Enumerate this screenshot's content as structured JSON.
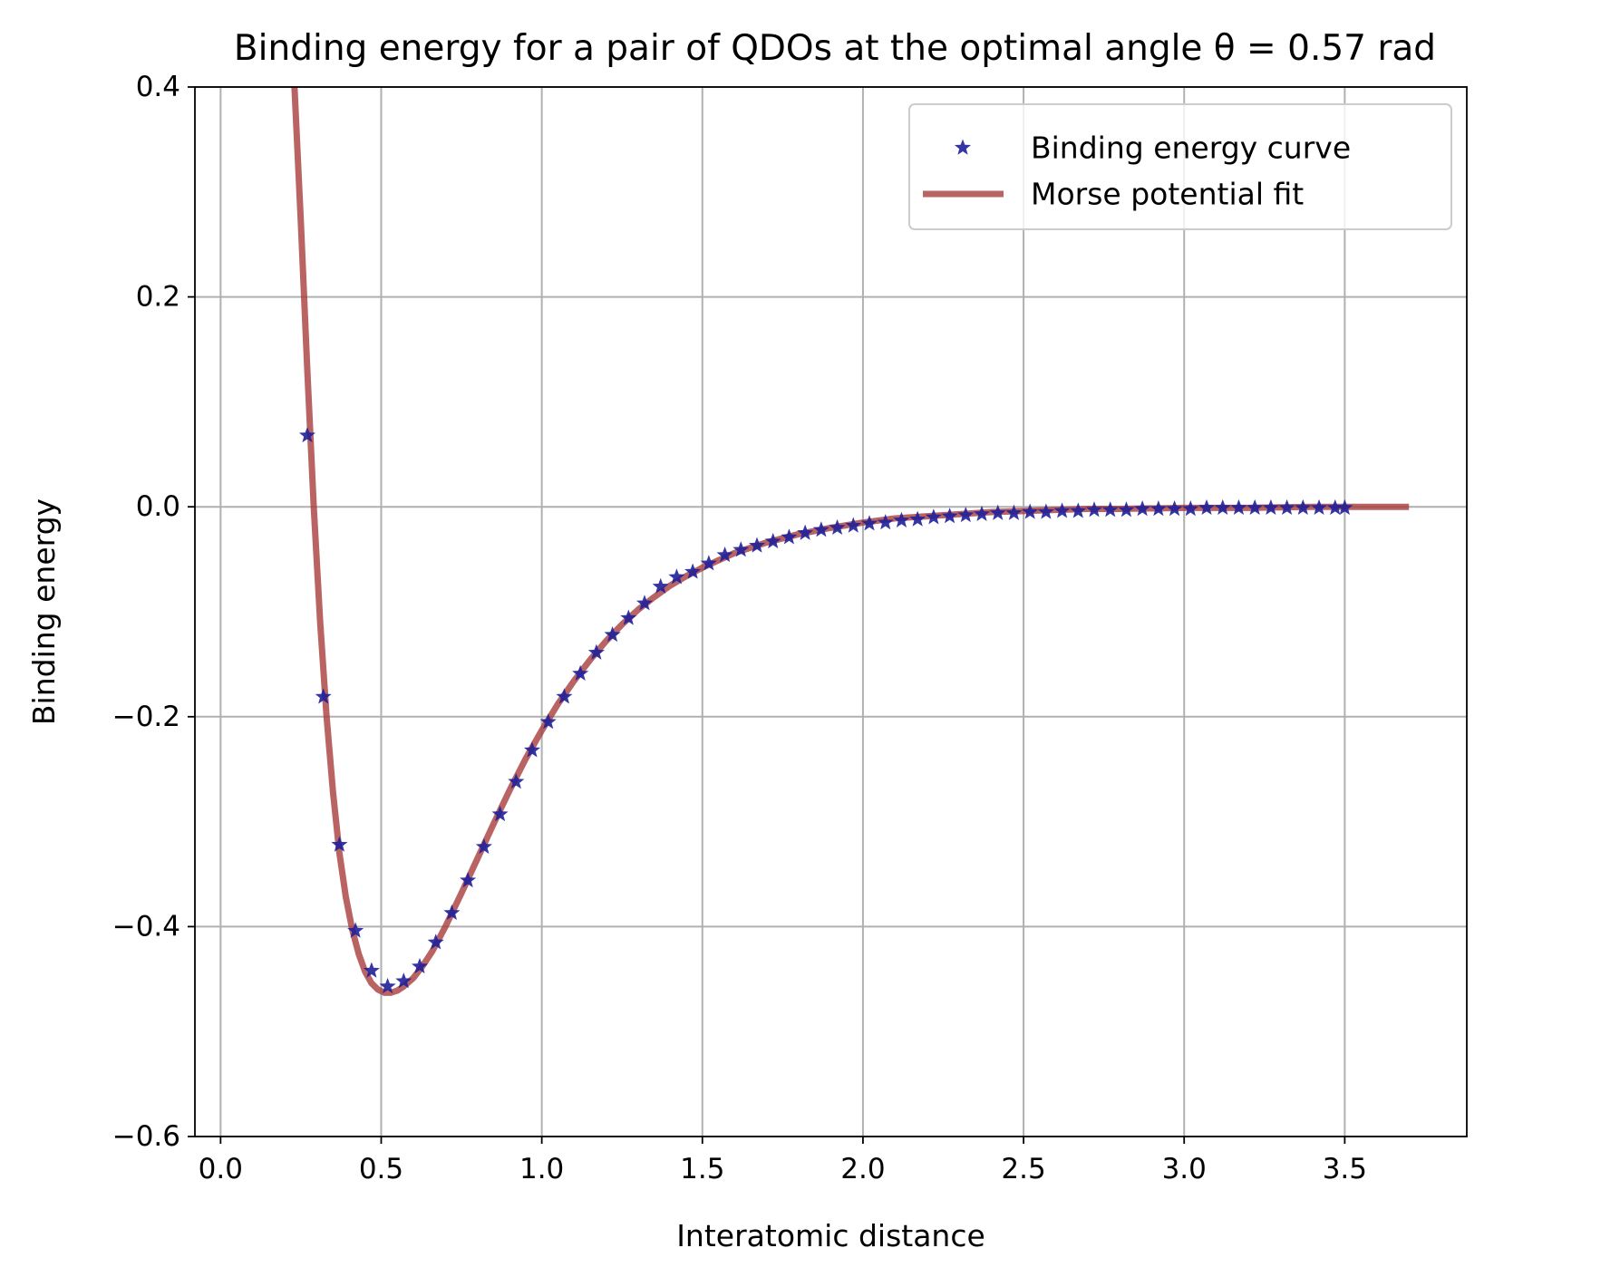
{
  "chart_data": {
    "type": "scatter",
    "title": "Binding energy for a pair of QDOs at the optimal angle θ = 0.57 rad",
    "xlabel": "Interatomic distance",
    "ylabel": "Binding energy",
    "xlim": [
      -0.08,
      3.88
    ],
    "ylim": [
      -0.6,
      0.4
    ],
    "xticks": [
      0.0,
      0.5,
      1.0,
      1.5,
      2.0,
      2.5,
      3.0,
      3.5
    ],
    "xtick_labels": [
      "0.0",
      "0.5",
      "1.0",
      "1.5",
      "2.0",
      "2.5",
      "3.0",
      "3.5"
    ],
    "yticks": [
      -0.6,
      -0.4,
      -0.2,
      0.0,
      0.2,
      0.4
    ],
    "ytick_labels": [
      "−0.6",
      "−0.4",
      "−0.2",
      "0.0",
      "0.2",
      "0.4"
    ],
    "grid": true,
    "legend_position": "upper right",
    "series": [
      {
        "name": "Binding energy curve",
        "kind": "scatter",
        "marker": "star",
        "color": "#1f1f9a",
        "points": [
          [
            0.27,
            0.068
          ],
          [
            0.32,
            -0.181
          ],
          [
            0.37,
            -0.322
          ],
          [
            0.42,
            -0.404
          ],
          [
            0.47,
            -0.442
          ],
          [
            0.52,
            -0.457
          ],
          [
            0.57,
            -0.452
          ],
          [
            0.62,
            -0.438
          ],
          [
            0.67,
            -0.415
          ],
          [
            0.72,
            -0.387
          ],
          [
            0.77,
            -0.356
          ],
          [
            0.82,
            -0.324
          ],
          [
            0.87,
            -0.293
          ],
          [
            0.92,
            -0.262
          ],
          [
            0.97,
            -0.232
          ],
          [
            1.02,
            -0.205
          ],
          [
            1.07,
            -0.181
          ],
          [
            1.12,
            -0.159
          ],
          [
            1.17,
            -0.139
          ],
          [
            1.22,
            -0.122
          ],
          [
            1.27,
            -0.106
          ],
          [
            1.32,
            -0.092
          ],
          [
            1.37,
            -0.076
          ],
          [
            1.42,
            -0.067
          ],
          [
            1.47,
            -0.062
          ],
          [
            1.52,
            -0.054
          ],
          [
            1.57,
            -0.046
          ],
          [
            1.62,
            -0.041
          ],
          [
            1.67,
            -0.037
          ],
          [
            1.72,
            -0.033
          ],
          [
            1.77,
            -0.029
          ],
          [
            1.82,
            -0.025
          ],
          [
            1.87,
            -0.022
          ],
          [
            1.92,
            -0.02
          ],
          [
            1.97,
            -0.018
          ],
          [
            2.02,
            -0.016
          ],
          [
            2.07,
            -0.015
          ],
          [
            2.12,
            -0.013
          ],
          [
            2.17,
            -0.012
          ],
          [
            2.22,
            -0.01
          ],
          [
            2.27,
            -0.009
          ],
          [
            2.32,
            -0.008
          ],
          [
            2.37,
            -0.007
          ],
          [
            2.42,
            -0.006
          ],
          [
            2.47,
            -0.006
          ],
          [
            2.52,
            -0.005
          ],
          [
            2.57,
            -0.005
          ],
          [
            2.62,
            -0.004
          ],
          [
            2.67,
            -0.004
          ],
          [
            2.72,
            -0.003
          ],
          [
            2.77,
            -0.003
          ],
          [
            2.82,
            -0.003
          ],
          [
            2.87,
            -0.002
          ],
          [
            2.92,
            -0.002
          ],
          [
            2.97,
            -0.002
          ],
          [
            3.02,
            -0.002
          ],
          [
            3.07,
            -0.001
          ],
          [
            3.12,
            -0.001
          ],
          [
            3.17,
            -0.001
          ],
          [
            3.22,
            -0.001
          ],
          [
            3.27,
            -0.001
          ],
          [
            3.32,
            -0.001
          ],
          [
            3.37,
            -0.001
          ],
          [
            3.42,
            -0.001
          ],
          [
            3.47,
            -0.001
          ],
          [
            3.5,
            -0.001
          ]
        ]
      },
      {
        "name": "Morse potential fit",
        "kind": "line",
        "color": "#a83c3c",
        "points": [
          [
            0.23,
            0.4
          ],
          [
            0.25,
            0.27
          ],
          [
            0.27,
            0.13
          ],
          [
            0.29,
            0.0
          ],
          [
            0.31,
            -0.11
          ],
          [
            0.33,
            -0.2
          ],
          [
            0.35,
            -0.272
          ],
          [
            0.37,
            -0.33
          ],
          [
            0.39,
            -0.372
          ],
          [
            0.41,
            -0.403
          ],
          [
            0.43,
            -0.426
          ],
          [
            0.45,
            -0.443
          ],
          [
            0.47,
            -0.454
          ],
          [
            0.49,
            -0.46
          ],
          [
            0.51,
            -0.463
          ],
          [
            0.53,
            -0.463
          ],
          [
            0.55,
            -0.461
          ],
          [
            0.57,
            -0.457
          ],
          [
            0.6,
            -0.449
          ],
          [
            0.63,
            -0.437
          ],
          [
            0.66,
            -0.423
          ],
          [
            0.7,
            -0.4
          ],
          [
            0.75,
            -0.368
          ],
          [
            0.8,
            -0.335
          ],
          [
            0.85,
            -0.302
          ],
          [
            0.9,
            -0.27
          ],
          [
            0.95,
            -0.24
          ],
          [
            1.0,
            -0.213
          ],
          [
            1.05,
            -0.188
          ],
          [
            1.1,
            -0.166
          ],
          [
            1.15,
            -0.146
          ],
          [
            1.2,
            -0.128
          ],
          [
            1.25,
            -0.112
          ],
          [
            1.3,
            -0.098
          ],
          [
            1.35,
            -0.086
          ],
          [
            1.4,
            -0.075
          ],
          [
            1.45,
            -0.066
          ],
          [
            1.5,
            -0.058
          ],
          [
            1.6,
            -0.044
          ],
          [
            1.7,
            -0.034
          ],
          [
            1.8,
            -0.026
          ],
          [
            1.9,
            -0.02
          ],
          [
            2.0,
            -0.015
          ],
          [
            2.1,
            -0.011
          ],
          [
            2.2,
            -0.009
          ],
          [
            2.3,
            -0.007
          ],
          [
            2.4,
            -0.005
          ],
          [
            2.5,
            -0.004
          ],
          [
            2.6,
            -0.003
          ],
          [
            2.7,
            -0.002
          ],
          [
            2.8,
            -0.002
          ],
          [
            3.0,
            -0.001
          ],
          [
            3.2,
            -0.001
          ],
          [
            3.4,
            0.0
          ],
          [
            3.7,
            0.0
          ]
        ]
      }
    ]
  }
}
